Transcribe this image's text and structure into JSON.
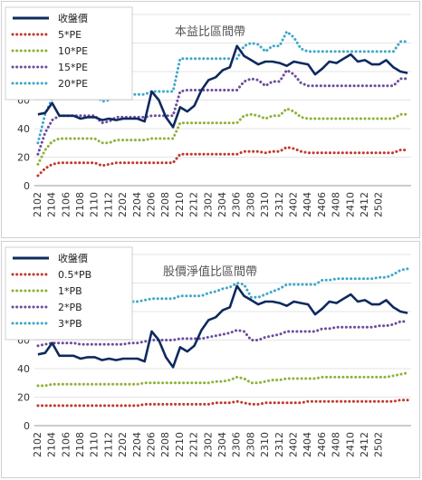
{
  "chart_data": [
    {
      "type": "line",
      "title": "本益比區間帶",
      "ylim": [
        0,
        120
      ],
      "yticks": [
        "0",
        "20",
        "40",
        "60",
        "80",
        "100",
        "120"
      ],
      "xticklabels": [
        "2102",
        "2104",
        "2106",
        "2108",
        "2110",
        "2112",
        "2202",
        "2204",
        "2206",
        "2208",
        "2210",
        "2212",
        "2302",
        "2304",
        "2306",
        "2308",
        "2310",
        "2312",
        "2402",
        "2404",
        "2406",
        "2408",
        "2410",
        "2412",
        "2502"
      ],
      "legend_position": "top-left",
      "series": [
        {
          "name": "收盤價",
          "color": "#0e2a5e",
          "style": "solid",
          "values": [
            50,
            51,
            58,
            49,
            49,
            49,
            47,
            48,
            48,
            46,
            47,
            46,
            47,
            47,
            47,
            45,
            66,
            60,
            48,
            41,
            55,
            52,
            56,
            67,
            74,
            76,
            81,
            83,
            98,
            91,
            88,
            85,
            87,
            87,
            86,
            84,
            87,
            86,
            85,
            78,
            82,
            87,
            86,
            89,
            92,
            87,
            88,
            85,
            85,
            88,
            83,
            80,
            79
          ]
        },
        {
          "name": "5*PE",
          "color": "#c0392b",
          "style": "dotted",
          "values": [
            7,
            12,
            15,
            16,
            16,
            16,
            16,
            16,
            16,
            14,
            15,
            16,
            16,
            16,
            16,
            16,
            16,
            16,
            16,
            16,
            22,
            22,
            22,
            22,
            22,
            22,
            22,
            22,
            22,
            24,
            24,
            24,
            23,
            24,
            24,
            27,
            26,
            24,
            23,
            23,
            23,
            23,
            23,
            23,
            23,
            23,
            23,
            23,
            23,
            23,
            23,
            25,
            25
          ]
        },
        {
          "name": "10*PE",
          "color": "#8fb23b",
          "style": "dotted",
          "values": [
            15,
            25,
            31,
            33,
            33,
            33,
            33,
            33,
            33,
            30,
            30,
            32,
            32,
            32,
            32,
            32,
            33,
            33,
            33,
            33,
            44,
            44,
            44,
            44,
            44,
            44,
            44,
            44,
            44,
            49,
            50,
            49,
            47,
            49,
            49,
            54,
            52,
            48,
            47,
            47,
            47,
            47,
            47,
            47,
            47,
            47,
            47,
            47,
            47,
            47,
            47,
            50,
            50
          ]
        },
        {
          "name": "15*PE",
          "color": "#6c4c9e",
          "style": "dotted",
          "values": [
            22,
            37,
            46,
            49,
            49,
            49,
            49,
            49,
            49,
            44,
            45,
            48,
            48,
            48,
            48,
            48,
            49,
            49,
            49,
            49,
            66,
            67,
            67,
            67,
            67,
            67,
            67,
            67,
            67,
            73,
            75,
            74,
            70,
            73,
            73,
            81,
            78,
            72,
            70,
            70,
            70,
            70,
            70,
            70,
            70,
            70,
            70,
            70,
            70,
            70,
            70,
            75,
            75
          ]
        },
        {
          "name": "20*PE",
          "color": "#3fa7c9",
          "style": "dotted",
          "values": [
            30,
            50,
            61,
            65,
            65,
            65,
            65,
            65,
            65,
            59,
            60,
            64,
            64,
            64,
            64,
            64,
            66,
            66,
            66,
            66,
            89,
            89,
            89,
            89,
            89,
            89,
            89,
            89,
            89,
            98,
            100,
            99,
            94,
            98,
            98,
            108,
            104,
            96,
            94,
            94,
            94,
            94,
            94,
            94,
            94,
            94,
            94,
            94,
            94,
            94,
            94,
            101,
            101
          ]
        }
      ]
    },
    {
      "type": "line",
      "title": "股價淨值比區間帶",
      "ylim": [
        0,
        120
      ],
      "yticks": [
        "0",
        "20",
        "40",
        "60",
        "80",
        "100",
        "120"
      ],
      "xticklabels": [
        "2102",
        "2104",
        "2106",
        "2108",
        "2110",
        "2112",
        "2202",
        "2204",
        "2206",
        "2208",
        "2210",
        "2212",
        "2302",
        "2304",
        "2306",
        "2308",
        "2310",
        "2312",
        "2402",
        "2404",
        "2406",
        "2408",
        "2410",
        "2412",
        "2502"
      ],
      "legend_position": "top-left",
      "series": [
        {
          "name": "收盤價",
          "color": "#0e2a5e",
          "style": "solid",
          "values": [
            50,
            51,
            58,
            49,
            49,
            49,
            47,
            48,
            48,
            46,
            47,
            46,
            47,
            47,
            47,
            45,
            66,
            60,
            48,
            41,
            55,
            52,
            56,
            67,
            74,
            76,
            81,
            83,
            98,
            91,
            88,
            85,
            87,
            87,
            86,
            84,
            87,
            86,
            85,
            78,
            82,
            87,
            86,
            89,
            92,
            87,
            88,
            85,
            85,
            88,
            83,
            80,
            79
          ]
        },
        {
          "name": "0.5*PB",
          "color": "#c0392b",
          "style": "dotted",
          "values": [
            14,
            14,
            14,
            14,
            14,
            14,
            14,
            14,
            14,
            14,
            14,
            14,
            14,
            14,
            14,
            15,
            15,
            15,
            15,
            15,
            15,
            15,
            15,
            15,
            15,
            16,
            16,
            16,
            17,
            16,
            15,
            15,
            16,
            16,
            16,
            16,
            16,
            16,
            17,
            17,
            17,
            17,
            17,
            17,
            17,
            17,
            17,
            17,
            17,
            17,
            17,
            18,
            18
          ]
        },
        {
          "name": "1*PB",
          "color": "#8fb23b",
          "style": "dotted",
          "values": [
            28,
            28,
            29,
            29,
            29,
            29,
            29,
            29,
            29,
            29,
            29,
            29,
            29,
            29,
            29,
            30,
            30,
            30,
            30,
            30,
            30,
            30,
            30,
            30,
            30,
            31,
            31,
            32,
            34,
            33,
            30,
            30,
            31,
            32,
            32,
            33,
            33,
            33,
            33,
            33,
            34,
            34,
            34,
            34,
            34,
            34,
            34,
            34,
            34,
            34,
            35,
            36,
            37
          ]
        },
        {
          "name": "2*PB",
          "color": "#6c4c9e",
          "style": "dotted",
          "values": [
            56,
            57,
            58,
            58,
            58,
            58,
            57,
            57,
            57,
            57,
            57,
            57,
            57,
            58,
            58,
            59,
            60,
            60,
            60,
            60,
            61,
            61,
            61,
            61,
            62,
            63,
            64,
            65,
            67,
            66,
            60,
            60,
            62,
            63,
            64,
            66,
            66,
            66,
            66,
            66,
            68,
            68,
            69,
            69,
            69,
            69,
            69,
            69,
            70,
            70,
            71,
            73,
            73
          ]
        },
        {
          "name": "3*PB",
          "color": "#3fa7c9",
          "style": "dotted",
          "values": [
            84,
            85,
            86,
            87,
            87,
            87,
            86,
            86,
            86,
            86,
            86,
            86,
            86,
            87,
            87,
            88,
            89,
            89,
            89,
            89,
            91,
            91,
            91,
            91,
            93,
            94,
            96,
            97,
            100,
            99,
            90,
            90,
            92,
            94,
            96,
            99,
            99,
            99,
            99,
            99,
            102,
            102,
            103,
            103,
            103,
            103,
            103,
            103,
            104,
            104,
            106,
            109,
            110
          ]
        }
      ]
    }
  ]
}
